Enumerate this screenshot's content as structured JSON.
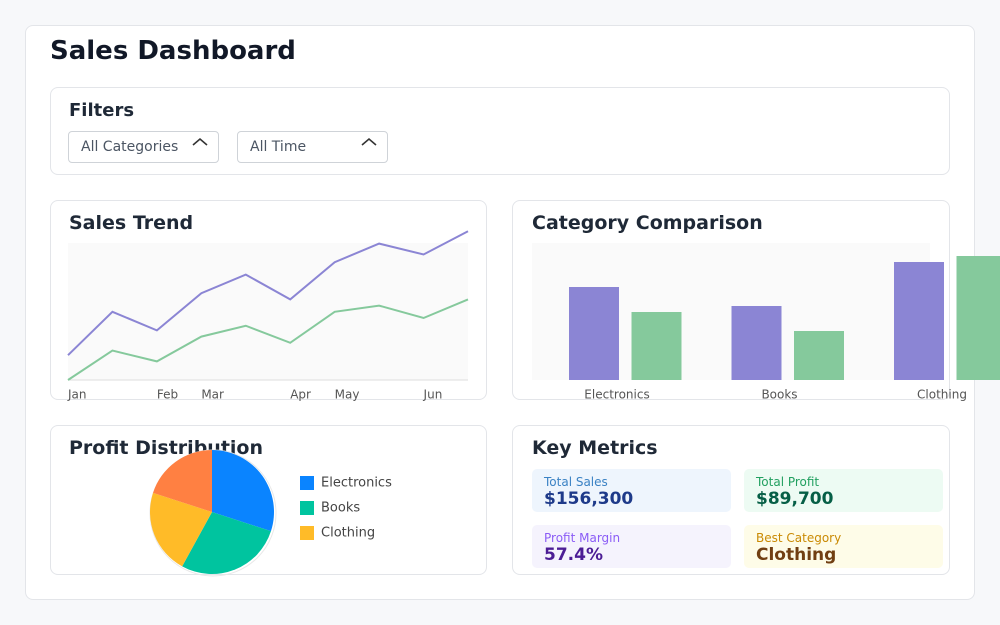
{
  "header": {
    "title": "Sales Dashboard"
  },
  "filters": {
    "title": "Filters",
    "selects": [
      "All Categories",
      "All Time"
    ]
  },
  "chart_data": [
    {
      "type": "line",
      "title": "Sales Trend",
      "categories": [
        "Jan",
        null,
        "Feb",
        "Mar",
        null,
        "Apr",
        "May",
        null,
        "Jun",
        null
      ],
      "ylim": [
        0,
        100
      ],
      "series": [
        {
          "color": "#8b85d4",
          "values": [
            16,
            44,
            32,
            56,
            68,
            52,
            76,
            88,
            81,
            96
          ]
        },
        {
          "color": "#85c99c",
          "values": [
            0,
            19,
            12,
            28,
            35,
            24,
            44,
            48,
            40,
            52
          ]
        }
      ]
    },
    {
      "type": "bar",
      "title": "Category Comparison",
      "categories": [
        "Electronics",
        "Books",
        "Clothing"
      ],
      "ylim": [
        0,
        137
      ],
      "series": [
        {
          "color": "#8b85d4",
          "values": [
            93,
            74,
            118
          ]
        },
        {
          "color": "#85c99c",
          "values": [
            68,
            49,
            124
          ]
        }
      ]
    },
    {
      "type": "pie",
      "title": "Profit Distribution",
      "categories": [
        "Electronics",
        "Books",
        "Clothing",
        null
      ],
      "values": [
        30,
        28,
        22,
        20
      ],
      "colors": [
        "#0a84ff",
        "#00c49f",
        "#ffbb28",
        "#ff8042"
      ]
    }
  ],
  "metrics": {
    "title": "Key Metrics",
    "items": [
      {
        "label": "Total Sales",
        "value": "$156,300",
        "bg": "#eef5fd",
        "label_color": "#3b82c4",
        "value_color": "#1e3a8a"
      },
      {
        "label": "Total Profit",
        "value": "$89,700",
        "bg": "#edfbf3",
        "label_color": "#22a060",
        "value_color": "#065f46"
      },
      {
        "label": "Profit Margin",
        "value": "57.4%",
        "bg": "#f5f3fd",
        "label_color": "#8b5cf6",
        "value_color": "#4c1d95"
      },
      {
        "label": "Best Category",
        "value": "Clothing",
        "bg": "#fefce8",
        "label_color": "#ca8a04",
        "value_color": "#713f12"
      }
    ]
  }
}
